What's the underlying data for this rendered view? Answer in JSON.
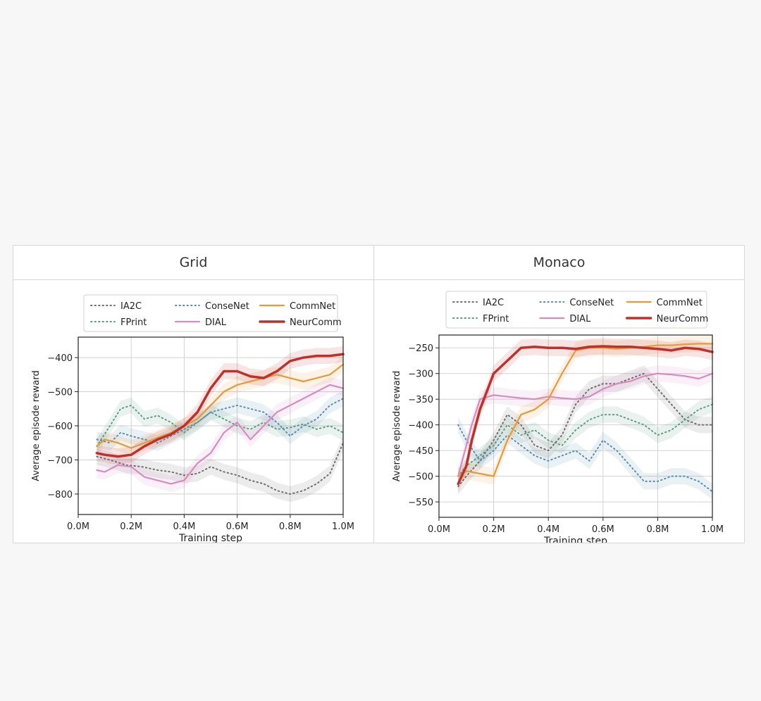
{
  "colors": {
    "IA2C": "#6f6f6f",
    "FPrint": "#5e9e82",
    "ConseNet": "#5b8fb0",
    "CommNet": "#e59a3c",
    "DIAL": "#d98bc0",
    "NeurComm": "#c0302b"
  },
  "chart_data": [
    {
      "type": "line",
      "title": "Grid",
      "xlabel": "Training step",
      "ylabel": "Average episode reward",
      "xlim": [
        0,
        1.0
      ],
      "ylim": [
        -860,
        -340
      ],
      "xticks": [
        0,
        0.2,
        0.4,
        0.6,
        0.8,
        1.0
      ],
      "xtick_labels": [
        "0.0M",
        "0.2M",
        "0.4M",
        "0.6M",
        "0.8M",
        "1.0M"
      ],
      "yticks": [
        -400,
        -500,
        -600,
        -700,
        -800
      ],
      "ytick_labels": [
        "−400",
        "−500",
        "−600",
        "−700",
        "−800"
      ],
      "grid": true,
      "legend_position": "top-center",
      "series": [
        {
          "name": "IA2C",
          "style": "dotted",
          "x": [
            0.07,
            0.12,
            0.18,
            0.24,
            0.3,
            0.35,
            0.4,
            0.45,
            0.5,
            0.55,
            0.6,
            0.65,
            0.7,
            0.75,
            0.8,
            0.85,
            0.9,
            0.95,
            1.0
          ],
          "y": [
            -690,
            -700,
            -715,
            -720,
            -730,
            -735,
            -745,
            -740,
            -720,
            -735,
            -745,
            -760,
            -770,
            -790,
            -800,
            -790,
            -770,
            -740,
            -650
          ]
        },
        {
          "name": "FPrint",
          "style": "dotted",
          "x": [
            0.07,
            0.12,
            0.16,
            0.2,
            0.25,
            0.3,
            0.35,
            0.4,
            0.45,
            0.5,
            0.55,
            0.6,
            0.65,
            0.7,
            0.75,
            0.8,
            0.85,
            0.9,
            0.95,
            1.0
          ],
          "y": [
            -660,
            -600,
            -550,
            -540,
            -580,
            -570,
            -590,
            -620,
            -590,
            -560,
            -580,
            -600,
            -610,
            -590,
            -610,
            -605,
            -595,
            -610,
            -600,
            -620
          ]
        },
        {
          "name": "ConseNet",
          "style": "dotted",
          "x": [
            0.07,
            0.12,
            0.16,
            0.2,
            0.25,
            0.3,
            0.35,
            0.4,
            0.45,
            0.5,
            0.55,
            0.6,
            0.65,
            0.7,
            0.75,
            0.8,
            0.85,
            0.9,
            0.95,
            1.0
          ],
          "y": [
            -640,
            -650,
            -620,
            -630,
            -640,
            -650,
            -630,
            -610,
            -590,
            -560,
            -550,
            -540,
            -550,
            -560,
            -590,
            -630,
            -600,
            -580,
            -540,
            -520
          ]
        },
        {
          "name": "CommNet",
          "style": "solid",
          "x": [
            0.07,
            0.1,
            0.15,
            0.2,
            0.25,
            0.3,
            0.35,
            0.4,
            0.45,
            0.5,
            0.55,
            0.6,
            0.65,
            0.7,
            0.75,
            0.8,
            0.85,
            0.9,
            0.95,
            1.0
          ],
          "y": [
            -660,
            -640,
            -650,
            -665,
            -650,
            -635,
            -620,
            -600,
            -580,
            -540,
            -500,
            -480,
            -470,
            -460,
            -450,
            -460,
            -470,
            -460,
            -450,
            -420
          ]
        },
        {
          "name": "DIAL",
          "style": "solid",
          "x": [
            0.07,
            0.1,
            0.15,
            0.2,
            0.25,
            0.3,
            0.35,
            0.4,
            0.45,
            0.5,
            0.55,
            0.6,
            0.65,
            0.7,
            0.75,
            0.8,
            0.85,
            0.9,
            0.95,
            1.0
          ],
          "y": [
            -730,
            -735,
            -715,
            -720,
            -750,
            -760,
            -770,
            -760,
            -710,
            -680,
            -620,
            -590,
            -640,
            -600,
            -560,
            -540,
            -520,
            -500,
            -480,
            -490
          ]
        },
        {
          "name": "NeurComm",
          "style": "solid",
          "x": [
            0.07,
            0.1,
            0.15,
            0.2,
            0.25,
            0.3,
            0.35,
            0.4,
            0.45,
            0.5,
            0.55,
            0.6,
            0.65,
            0.7,
            0.75,
            0.8,
            0.85,
            0.9,
            0.95,
            1.0
          ],
          "y": [
            -680,
            -685,
            -690,
            -685,
            -660,
            -640,
            -625,
            -600,
            -560,
            -490,
            -440,
            -440,
            -455,
            -460,
            -440,
            -410,
            -400,
            -395,
            -395,
            -390
          ]
        }
      ]
    },
    {
      "type": "line",
      "title": "Monaco",
      "xlabel": "Training step",
      "ylabel": "Average episode reward",
      "xlim": [
        0,
        1.0
      ],
      "ylim": [
        -580,
        -225
      ],
      "xticks": [
        0,
        0.2,
        0.4,
        0.6,
        0.8,
        1.0
      ],
      "xtick_labels": [
        "0.0M",
        "0.2M",
        "0.4M",
        "0.6M",
        "0.8M",
        "1.0M"
      ],
      "yticks": [
        -250,
        -300,
        -350,
        -400,
        -450,
        -500,
        -550
      ],
      "ytick_labels": [
        "−250",
        "−300",
        "−350",
        "−400",
        "−450",
        "−500",
        "−550"
      ],
      "grid": true,
      "legend_position": "top-center",
      "series": [
        {
          "name": "IA2C",
          "style": "dotted",
          "x": [
            0.07,
            0.1,
            0.15,
            0.2,
            0.25,
            0.3,
            0.35,
            0.4,
            0.45,
            0.5,
            0.55,
            0.6,
            0.65,
            0.7,
            0.75,
            0.8,
            0.85,
            0.9,
            0.95,
            1.0
          ],
          "y": [
            -520,
            -500,
            -470,
            -430,
            -380,
            -400,
            -440,
            -450,
            -420,
            -360,
            -330,
            -320,
            -320,
            -310,
            -300,
            -330,
            -360,
            -390,
            -400,
            -400
          ]
        },
        {
          "name": "FPrint",
          "style": "dotted",
          "x": [
            0.07,
            0.1,
            0.15,
            0.2,
            0.25,
            0.3,
            0.35,
            0.4,
            0.45,
            0.5,
            0.55,
            0.6,
            0.65,
            0.7,
            0.75,
            0.8,
            0.85,
            0.9,
            0.95,
            1.0
          ],
          "y": [
            -500,
            -480,
            -460,
            -440,
            -400,
            -420,
            -410,
            -430,
            -440,
            -410,
            -390,
            -380,
            -380,
            -390,
            -400,
            -420,
            -410,
            -390,
            -370,
            -360
          ]
        },
        {
          "name": "ConseNet",
          "style": "dotted",
          "x": [
            0.07,
            0.1,
            0.15,
            0.2,
            0.25,
            0.3,
            0.35,
            0.4,
            0.45,
            0.5,
            0.55,
            0.6,
            0.65,
            0.7,
            0.75,
            0.8,
            0.85,
            0.9,
            0.95,
            1.0
          ],
          "y": [
            -400,
            -430,
            -470,
            -450,
            -420,
            -440,
            -460,
            -470,
            -460,
            -450,
            -470,
            -430,
            -450,
            -480,
            -510,
            -510,
            -500,
            -500,
            -510,
            -530
          ]
        },
        {
          "name": "CommNet",
          "style": "solid",
          "x": [
            0.07,
            0.1,
            0.15,
            0.2,
            0.25,
            0.3,
            0.35,
            0.4,
            0.45,
            0.5,
            0.55,
            0.6,
            0.65,
            0.7,
            0.75,
            0.8,
            0.85,
            0.9,
            0.95,
            1.0
          ],
          "y": [
            -500,
            -490,
            -495,
            -500,
            -430,
            -380,
            -370,
            -350,
            -300,
            -255,
            -250,
            -250,
            -252,
            -250,
            -248,
            -245,
            -245,
            -243,
            -242,
            -242
          ]
        },
        {
          "name": "DIAL",
          "style": "solid",
          "x": [
            0.07,
            0.1,
            0.12,
            0.15,
            0.2,
            0.25,
            0.3,
            0.35,
            0.4,
            0.45,
            0.5,
            0.55,
            0.6,
            0.65,
            0.7,
            0.75,
            0.8,
            0.85,
            0.9,
            0.95,
            1.0
          ],
          "y": [
            -500,
            -440,
            -400,
            -350,
            -342,
            -345,
            -348,
            -350,
            -345,
            -348,
            -350,
            -345,
            -330,
            -320,
            -315,
            -305,
            -300,
            -302,
            -305,
            -310,
            -300
          ]
        },
        {
          "name": "NeurComm",
          "style": "solid",
          "x": [
            0.07,
            0.1,
            0.12,
            0.15,
            0.2,
            0.25,
            0.3,
            0.35,
            0.4,
            0.45,
            0.5,
            0.55,
            0.6,
            0.65,
            0.7,
            0.75,
            0.8,
            0.85,
            0.9,
            0.95,
            1.0
          ],
          "y": [
            -515,
            -480,
            -430,
            -370,
            -300,
            -275,
            -250,
            -248,
            -250,
            -250,
            -252,
            -248,
            -247,
            -248,
            -248,
            -250,
            -252,
            -255,
            -250,
            -252,
            -258
          ]
        }
      ]
    }
  ]
}
